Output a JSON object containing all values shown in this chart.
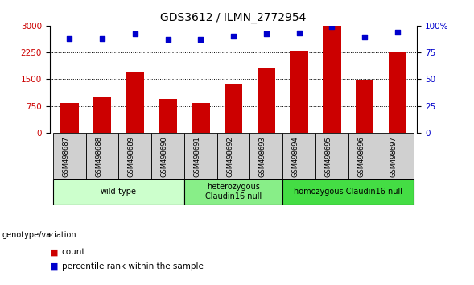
{
  "title": "GDS3612 / ILMN_2772954",
  "samples": [
    "GSM498687",
    "GSM498688",
    "GSM498689",
    "GSM498690",
    "GSM498691",
    "GSM498692",
    "GSM498693",
    "GSM498694",
    "GSM498695",
    "GSM498696",
    "GSM498697"
  ],
  "counts": [
    830,
    1000,
    1700,
    950,
    830,
    1380,
    1800,
    2300,
    3000,
    1480,
    2280
  ],
  "percentiles": [
    88,
    88,
    92,
    87,
    87,
    90,
    92,
    93,
    99,
    89,
    94
  ],
  "ylim_left": [
    0,
    3000
  ],
  "ylim_right": [
    0,
    100
  ],
  "yticks_left": [
    0,
    750,
    1500,
    2250,
    3000
  ],
  "yticks_right": [
    0,
    25,
    50,
    75,
    100
  ],
  "bar_color": "#cc0000",
  "dot_color": "#0000cc",
  "groups": [
    {
      "label": "wild-type",
      "indices": [
        0,
        1,
        2,
        3
      ],
      "color": "#ccffcc"
    },
    {
      "label": "heterozygous\nClaudin16 null",
      "indices": [
        4,
        5,
        6
      ],
      "color": "#88ee88"
    },
    {
      "label": "homozygous Claudin16 null",
      "indices": [
        7,
        8,
        9,
        10
      ],
      "color": "#44dd44"
    }
  ],
  "genotype_label": "genotype/variation",
  "legend_count": "count",
  "legend_percentile": "percentile rank within the sample",
  "sample_bg_color": "#d0d0d0",
  "group_bg_color": "#e8e8e8",
  "plot_bg": "#ffffff",
  "tick_label_color_left": "#cc0000",
  "tick_label_color_right": "#0000cc"
}
